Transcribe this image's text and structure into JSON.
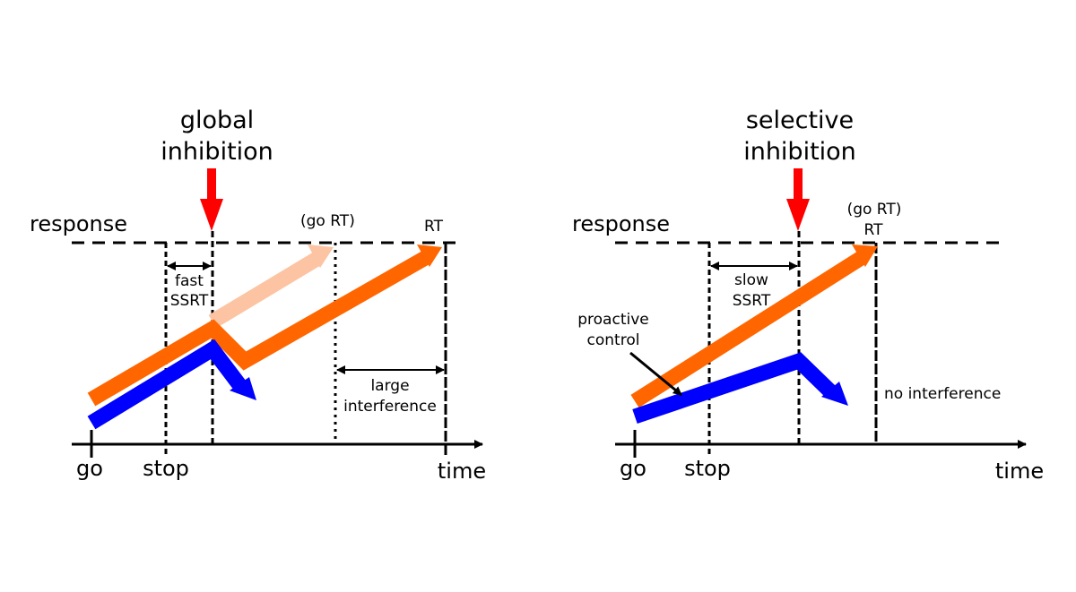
{
  "colors": {
    "orange": "#ff6600",
    "orange_faded": "#fcc4a2",
    "blue": "#0000ff",
    "red": "#ff0000",
    "black": "#000000"
  },
  "left_panel": {
    "title_line1": "global",
    "title_line2": "inhibition",
    "response_label": "response",
    "go_rt_label": "(go RT)",
    "rt_label": "RT",
    "ssrt_line1": "fast",
    "ssrt_line2": "SSRT",
    "interference_line1": "large",
    "interference_line2": "interference",
    "go_label": "go",
    "stop_label": "stop",
    "time_label": "time"
  },
  "right_panel": {
    "title_line1": "selective",
    "title_line2": "inhibition",
    "response_label": "response",
    "go_rt_label": "(go RT)",
    "rt_label": "RT",
    "ssrt_line1": "slow",
    "ssrt_line2": "SSRT",
    "proactive_line1": "proactive",
    "proactive_line2": "control",
    "interference_label": "no interference",
    "go_label": "go",
    "stop_label": "stop",
    "time_label": "time"
  },
  "icons": {
    "inhibition_arrow": "red-down-arrow-icon",
    "process_arrow": "thick-arrow-icon"
  }
}
